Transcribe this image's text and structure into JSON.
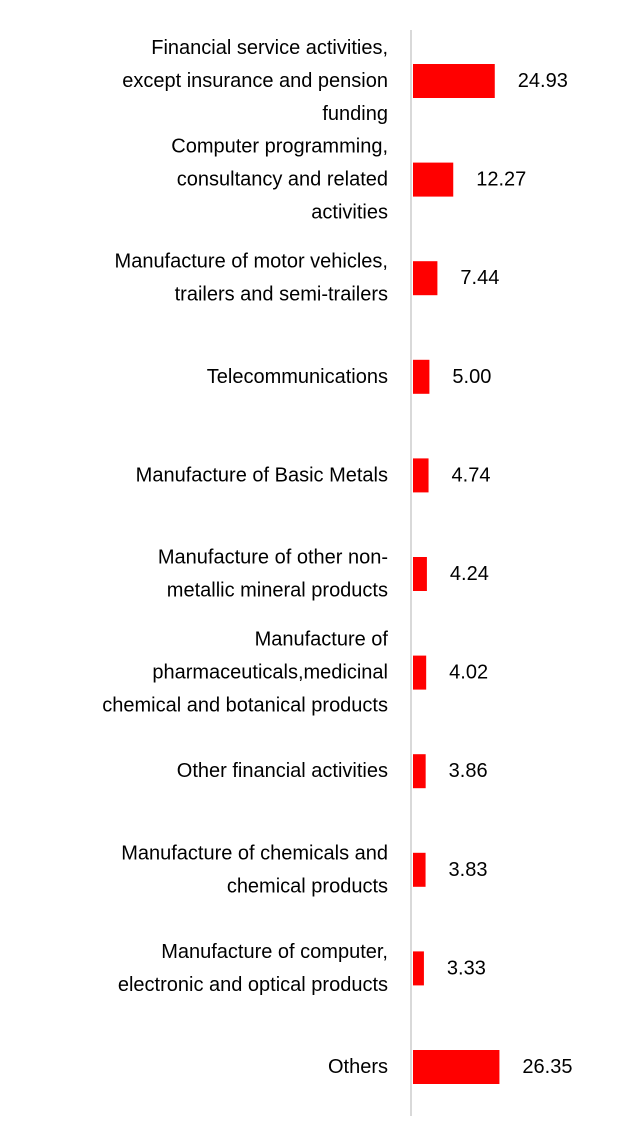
{
  "chart_data": {
    "type": "bar",
    "orientation": "horizontal",
    "categories": [
      "Financial service activities, except insurance and pension funding",
      "Computer programming, consultancy and related activities",
      "Manufacture of motor vehicles, trailers and semi-trailers",
      "Telecommunications",
      "Manufacture of Basic Metals",
      "Manufacture of other non-metallic mineral products",
      "Manufacture of pharmaceuticals,medicinal chemical and botanical products",
      "Other financial activities",
      "Manufacture of chemicals and chemical products",
      "Manufacture of computer, electronic and optical products",
      "Others"
    ],
    "category_lines": [
      [
        "Financial service activities,",
        "except insurance and pension",
        "funding"
      ],
      [
        "Computer programming,",
        "consultancy and related",
        "activities"
      ],
      [
        "Manufacture of motor vehicles,",
        "trailers and semi-trailers"
      ],
      [
        "Telecommunications"
      ],
      [
        "Manufacture of Basic Metals"
      ],
      [
        "Manufacture of other non-",
        "metallic mineral products"
      ],
      [
        "Manufacture of",
        "pharmaceuticals,medicinal",
        "chemical and botanical products"
      ],
      [
        "Other financial activities"
      ],
      [
        "Manufacture of chemicals and",
        "chemical products"
      ],
      [
        "Manufacture of computer,",
        "electronic and optical products"
      ],
      [
        "Others"
      ]
    ],
    "values": [
      24.93,
      12.27,
      7.44,
      5.0,
      4.74,
      4.24,
      4.02,
      3.86,
      3.83,
      3.33,
      26.35
    ],
    "value_labels": [
      "24.93",
      "12.27",
      "7.44",
      "5.00",
      "4.74",
      "4.24",
      "4.02",
      "3.86",
      "3.83",
      "3.33",
      "26.35"
    ],
    "title": "",
    "xlabel": "",
    "ylabel": "",
    "xlim": [
      0,
      100
    ],
    "grid": false,
    "legend": "none",
    "bar_color": "#ff0000",
    "axis_color": "#d9d9d9"
  }
}
